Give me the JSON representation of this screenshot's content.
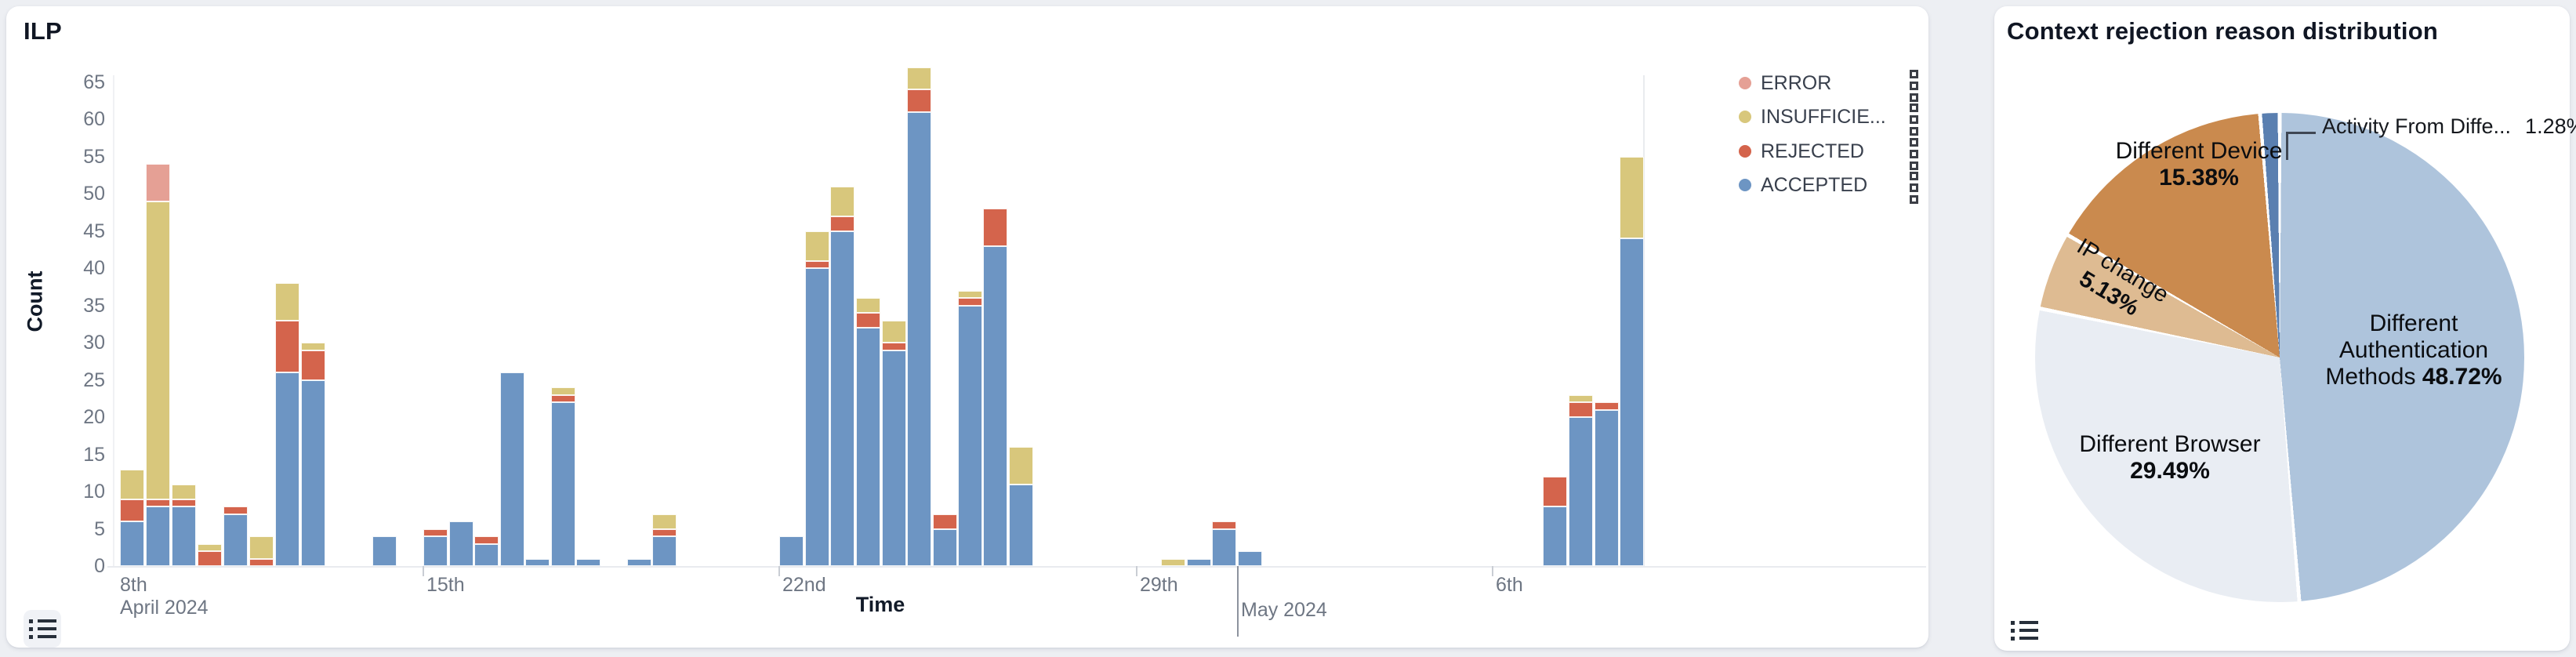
{
  "left_panel": {
    "title": "ILP",
    "y_axis_title": "Count",
    "x_axis_title": "Time",
    "legend": {
      "items": [
        {
          "label": "ERROR",
          "color": "#e5a095"
        },
        {
          "label": "INSUFFICIE...",
          "color": "#d8c77c"
        },
        {
          "label": "REJECTED",
          "color": "#d4644c"
        },
        {
          "label": "ACCEPTED",
          "color": "#6d95c3"
        }
      ]
    }
  },
  "right_panel": {
    "title": "Context rejection reason distribution",
    "labels": {
      "device_name": "Different Device",
      "device_pct": "15.38%",
      "ip_name": "IP change",
      "ip_pct": "5.13%",
      "auth_line1": "Different",
      "auth_line2": "Authentication",
      "auth_line3": "Methods ",
      "auth_pct": "48.72%",
      "browser_name": "Different Browser",
      "browser_pct": "29.49%",
      "activity_name": "Activity From Diffe...",
      "activity_pct": "1.28%"
    }
  },
  "chart_data": [
    {
      "type": "bar",
      "title": "ILP",
      "xlabel": "Time",
      "ylabel": "Count",
      "ylim": [
        0,
        65
      ],
      "y_ticks": [
        0,
        5,
        10,
        15,
        20,
        25,
        30,
        35,
        40,
        45,
        50,
        55,
        60,
        65
      ],
      "stack_order": [
        "accepted",
        "rejected",
        "insufficient",
        "error"
      ],
      "series_colors": {
        "accepted": "#6d95c3",
        "rejected": "#d4644c",
        "insufficient": "#d8c77c",
        "error": "#e5a095"
      },
      "x_axis_labels": [
        {
          "x": 140,
          "label": "8th\nApril 2024",
          "tick": "none"
        },
        {
          "x": 531,
          "label": "15th",
          "tick": "short"
        },
        {
          "x": 985,
          "label": "22nd",
          "tick": "short"
        },
        {
          "x": 1441,
          "label": "29th",
          "tick": "short"
        },
        {
          "x": 1570,
          "label": "May 2024",
          "tick": "long"
        },
        {
          "x": 1895,
          "label": "6th",
          "tick": "short"
        }
      ],
      "bars": [
        {
          "x": 145,
          "accepted": 6,
          "rejected": 3,
          "insufficient": 4,
          "error": 0
        },
        {
          "x": 178,
          "accepted": 8,
          "rejected": 1,
          "insufficient": 40,
          "error": 5
        },
        {
          "x": 211,
          "accepted": 8,
          "rejected": 1,
          "insufficient": 2,
          "error": 0
        },
        {
          "x": 244,
          "accepted": 0,
          "rejected": 2,
          "insufficient": 1,
          "error": 0
        },
        {
          "x": 277,
          "accepted": 7,
          "rejected": 1,
          "insufficient": 0,
          "error": 0
        },
        {
          "x": 310,
          "accepted": 0,
          "rejected": 1,
          "insufficient": 3,
          "error": 0
        },
        {
          "x": 343,
          "accepted": 26,
          "rejected": 7,
          "insufficient": 5,
          "error": 0
        },
        {
          "x": 376,
          "accepted": 25,
          "rejected": 4,
          "insufficient": 1,
          "error": 0
        },
        {
          "x": 467,
          "accepted": 4,
          "rejected": 0,
          "insufficient": 0,
          "error": 0
        },
        {
          "x": 532,
          "accepted": 4,
          "rejected": 1,
          "insufficient": 0,
          "error": 0
        },
        {
          "x": 565,
          "accepted": 6,
          "rejected": 0,
          "insufficient": 0,
          "error": 0
        },
        {
          "x": 597,
          "accepted": 3,
          "rejected": 1,
          "insufficient": 0,
          "error": 0
        },
        {
          "x": 630,
          "accepted": 26,
          "rejected": 0,
          "insufficient": 0,
          "error": 0
        },
        {
          "x": 662,
          "accepted": 1,
          "rejected": 0,
          "insufficient": 0,
          "error": 0
        },
        {
          "x": 695,
          "accepted": 22,
          "rejected": 1,
          "insufficient": 1,
          "error": 0
        },
        {
          "x": 727,
          "accepted": 1,
          "rejected": 0,
          "insufficient": 0,
          "error": 0
        },
        {
          "x": 792,
          "accepted": 1,
          "rejected": 0,
          "insufficient": 0,
          "error": 0
        },
        {
          "x": 824,
          "accepted": 4,
          "rejected": 1,
          "insufficient": 2,
          "error": 0
        },
        {
          "x": 986,
          "accepted": 4,
          "rejected": 0,
          "insufficient": 0,
          "error": 0
        },
        {
          "x": 1019,
          "accepted": 40,
          "rejected": 1,
          "insufficient": 4,
          "error": 0
        },
        {
          "x": 1051,
          "accepted": 45,
          "rejected": 2,
          "insufficient": 4,
          "error": 0
        },
        {
          "x": 1084,
          "accepted": 32,
          "rejected": 2,
          "insufficient": 2,
          "error": 0
        },
        {
          "x": 1117,
          "accepted": 29,
          "rejected": 1,
          "insufficient": 3,
          "error": 0
        },
        {
          "x": 1149,
          "accepted": 61,
          "rejected": 3,
          "insufficient": 3,
          "error": 0
        },
        {
          "x": 1182,
          "accepted": 5,
          "rejected": 2,
          "insufficient": 0,
          "error": 0
        },
        {
          "x": 1214,
          "accepted": 35,
          "rejected": 1,
          "insufficient": 1,
          "error": 0
        },
        {
          "x": 1246,
          "accepted": 43,
          "rejected": 5,
          "insufficient": 0,
          "error": 0
        },
        {
          "x": 1279,
          "accepted": 11,
          "rejected": 0,
          "insufficient": 5,
          "error": 0
        },
        {
          "x": 1473,
          "accepted": 0,
          "rejected": 0,
          "insufficient": 1,
          "error": 0
        },
        {
          "x": 1506,
          "accepted": 1,
          "rejected": 0,
          "insufficient": 0,
          "error": 0
        },
        {
          "x": 1538,
          "accepted": 5,
          "rejected": 1,
          "insufficient": 0,
          "error": 0
        },
        {
          "x": 1571,
          "accepted": 2,
          "rejected": 0,
          "insufficient": 0,
          "error": 0
        },
        {
          "x": 1960,
          "accepted": 8,
          "rejected": 4,
          "insufficient": 0,
          "error": 0
        },
        {
          "x": 1993,
          "accepted": 20,
          "rejected": 2,
          "insufficient": 1,
          "error": 0
        },
        {
          "x": 2026,
          "accepted": 21,
          "rejected": 1,
          "insufficient": 0,
          "error": 0
        },
        {
          "x": 2058,
          "accepted": 44,
          "rejected": 0,
          "insufficient": 11,
          "error": 0
        }
      ]
    },
    {
      "type": "pie",
      "title": "Context rejection reason distribution",
      "legend_position": "none",
      "slices": [
        {
          "label": "Different Authentication Methods",
          "pct": 48.72,
          "color": "#aec4dc"
        },
        {
          "label": "Different Browser",
          "pct": 29.49,
          "color": "#e9edf3"
        },
        {
          "label": "IP change",
          "pct": 5.13,
          "color": "#debb92"
        },
        {
          "label": "Different Device",
          "pct": 15.38,
          "color": "#ca8a4e"
        },
        {
          "label": "Activity From Diffe...",
          "pct": 1.28,
          "color": "#5a7fb0"
        }
      ]
    }
  ]
}
